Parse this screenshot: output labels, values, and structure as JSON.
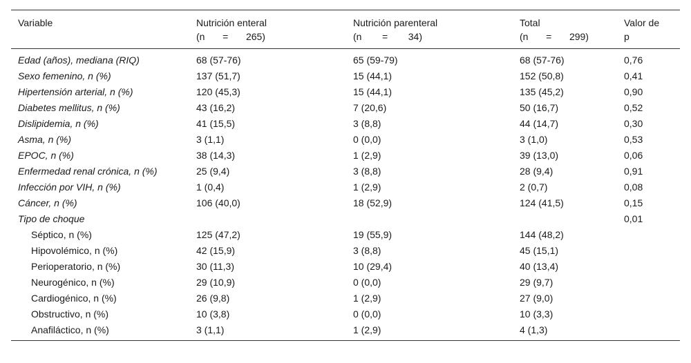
{
  "header": {
    "variable": "Variable",
    "enteral": {
      "label": "Nutrición enteral",
      "n_label": "(n",
      "eq": "=",
      "n_value": "265)"
    },
    "parenteral": {
      "label": "Nutrición parenteral",
      "n_label": "(n",
      "eq": "=",
      "n_value": "34)"
    },
    "total": {
      "label": "Total",
      "n_label": "(n",
      "eq": "=",
      "n_value": "299)"
    },
    "pvalue_line1": "Valor de",
    "pvalue_line2": "p"
  },
  "rows": [
    {
      "variable": "Edad (años), mediana (RIQ)",
      "enteral": "68 (57-76)",
      "parenteral": "65 (59-79)",
      "total": "68 (57-76)",
      "p": "0,76"
    },
    {
      "variable": "Sexo femenino, n (%)",
      "enteral": "137 (51,7)",
      "parenteral": "15 (44,1)",
      "total": "152 (50,8)",
      "p": "0,41"
    },
    {
      "variable": "Hipertensión arterial, n (%)",
      "enteral": "120 (45,3)",
      "parenteral": "15 (44,1)",
      "total": "135 (45,2)",
      "p": "0,90"
    },
    {
      "variable": "Diabetes mellitus, n (%)",
      "enteral": "43 (16,2)",
      "parenteral": "7 (20,6)",
      "total": "50 (16,7)",
      "p": "0,52"
    },
    {
      "variable": "Dislipidemia, n (%)",
      "enteral": "41 (15,5)",
      "parenteral": "3 (8,8)",
      "total": "44 (14,7)",
      "p": "0,30"
    },
    {
      "variable": "Asma, n (%)",
      "enteral": "3 (1,1)",
      "parenteral": "0 (0,0)",
      "total": "3 (1,0)",
      "p": "0,53"
    },
    {
      "variable": "EPOC, n (%)",
      "enteral": "38 (14,3)",
      "parenteral": "1 (2,9)",
      "total": "39 (13,0)",
      "p": "0,06"
    },
    {
      "variable": "Enfermedad renal crónica, n (%)",
      "enteral": "25 (9,4)",
      "parenteral": "3 (8,8)",
      "total": "28 (9,4)",
      "p": "0,91"
    },
    {
      "variable": "Infección por VIH, n (%)",
      "enteral": "1 (0,4)",
      "parenteral": "1 (2,9)",
      "total": "2 (0,7)",
      "p": "0,08"
    },
    {
      "variable": "Cáncer, n (%)",
      "enteral": "106 (40,0)",
      "parenteral": "18 (52,9)",
      "total": "124 (41,5)",
      "p": "0,15"
    },
    {
      "variable": "Tipo de choque",
      "enteral": "",
      "parenteral": "",
      "total": "",
      "p": "0,01"
    },
    {
      "variable": "Séptico, n (%)",
      "enteral": "125 (47,2)",
      "parenteral": "19 (55,9)",
      "total": "144 (48,2)",
      "p": "",
      "sub": true
    },
    {
      "variable": "Hipovolémico, n (%)",
      "enteral": "42 (15,9)",
      "parenteral": "3 (8,8)",
      "total": "45 (15,1)",
      "p": "",
      "sub": true
    },
    {
      "variable": "Perioperatorio, n (%)",
      "enteral": "30 (11,3)",
      "parenteral": "10 (29,4)",
      "total": "40 (13,4)",
      "p": "",
      "sub": true
    },
    {
      "variable": "Neurogénico, n (%)",
      "enteral": "29 (10,9)",
      "parenteral": "0 (0,0)",
      "total": "29 (9,7)",
      "p": "",
      "sub": true
    },
    {
      "variable": "Cardiogénico, n (%)",
      "enteral": "26 (9,8)",
      "parenteral": "1 (2,9)",
      "total": "27 (9,0)",
      "p": "",
      "sub": true
    },
    {
      "variable": "Obstructivo, n (%)",
      "enteral": "10 (3,8)",
      "parenteral": "0 (0,0)",
      "total": "10 (3,3)",
      "p": "",
      "sub": true
    },
    {
      "variable": "Anafiláctico, n (%)",
      "enteral": "3 (1,1)",
      "parenteral": "1 (2,9)",
      "total": "4 (1,3)",
      "p": "",
      "sub": true
    }
  ]
}
